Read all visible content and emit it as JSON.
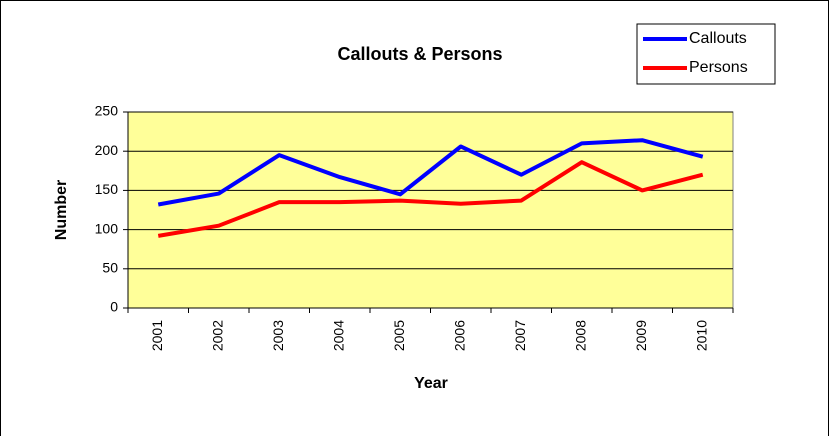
{
  "chart_data": {
    "type": "line",
    "title": "Callouts & Persons",
    "x_label": "Year",
    "y_label": "Number",
    "categories": [
      "2001",
      "2002",
      "2003",
      "2004",
      "2005",
      "2006",
      "2007",
      "2008",
      "2009",
      "2010"
    ],
    "series": [
      {
        "name": "Callouts",
        "color": "#0000ff",
        "values": [
          132,
          146,
          195,
          167,
          145,
          206,
          170,
          210,
          214,
          193
        ]
      },
      {
        "name": "Persons",
        "color": "#ff0000",
        "values": [
          92,
          105,
          135,
          135,
          137,
          133,
          137,
          186,
          150,
          170
        ]
      }
    ],
    "ylim": [
      0,
      250
    ],
    "yticks": [
      0,
      50,
      100,
      150,
      200,
      250
    ],
    "grid": true,
    "legend": "top-right",
    "plot_background": "#ffff99"
  }
}
